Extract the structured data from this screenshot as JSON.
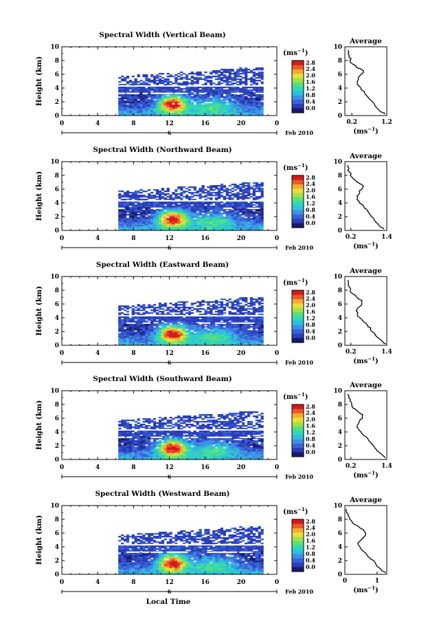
{
  "date_label": "Feb 2010",
  "xlabel": "Local Time",
  "average_title": "Average",
  "cbar_unit": "(ms⁻¹)",
  "avg_xlabel": "(ms⁻¹)",
  "colors": {
    "colormap": [
      "#1a1a6a",
      "#2a3eb8",
      "#3a62d8",
      "#3f8fe8",
      "#2fbfe0",
      "#2fd7b8",
      "#55e07a",
      "#a6e04a",
      "#e8e03a",
      "#f5a832",
      "#ec5a2a",
      "#d41a1a"
    ]
  },
  "chart_data": [
    {
      "type": "heatmap",
      "title": "Spectral Width (Vertical Beam)",
      "ylabel": "Height (km)",
      "x_ticks": [
        "0",
        "4",
        "8",
        "12",
        "16",
        "20",
        "0"
      ],
      "day_tick": "6",
      "y_ticks": [
        "0",
        "2",
        "4",
        "6",
        "8",
        "10"
      ],
      "xlim": [
        0,
        24
      ],
      "ylim": [
        0,
        10
      ],
      "cbar_ticks": [
        "0.0",
        "0.4",
        "0.8",
        "1.2",
        "1.6",
        "2.0",
        "2.4",
        "2.8"
      ],
      "cbar_range": [
        0,
        2.8
      ],
      "data_extent": {
        "time": [
          6.3,
          22.5
        ],
        "height_core": [
          0,
          4.2
        ],
        "height_upper": [
          4.4,
          7.0
        ]
      },
      "average": {
        "x_ticks": [
          "0.2",
          "1.2"
        ],
        "xlim": [
          0,
          1.2
        ],
        "height": [
          0.2,
          0.5,
          1,
          1.5,
          2,
          2.5,
          3,
          3.5,
          4,
          4.5,
          5,
          5.5,
          6,
          6.5,
          7,
          7.5,
          8,
          8.5,
          9,
          9.5
        ],
        "value": [
          1.15,
          1.05,
          0.95,
          0.85,
          0.78,
          0.7,
          0.62,
          0.55,
          0.45,
          0.38,
          0.35,
          0.4,
          0.48,
          0.52,
          0.35,
          0.22,
          0.16,
          0.12,
          0.1,
          0.08
        ]
      }
    },
    {
      "type": "heatmap",
      "title": "Spectral Width (Northward Beam)",
      "ylabel": "Height (km)",
      "x_ticks": [
        "0",
        "4",
        "8",
        "12",
        "16",
        "20",
        "0"
      ],
      "day_tick": "6",
      "y_ticks": [
        "0",
        "2",
        "4",
        "6",
        "8",
        "10"
      ],
      "xlim": [
        0,
        24
      ],
      "ylim": [
        0,
        10
      ],
      "cbar_ticks": [
        "0.0",
        "0.4",
        "0.8",
        "1.2",
        "1.6",
        "2.0",
        "2.4",
        "2.8"
      ],
      "cbar_range": [
        0,
        2.8
      ],
      "data_extent": {
        "time": [
          6.3,
          22.5
        ],
        "height_core": [
          0,
          4.2
        ],
        "height_upper": [
          4.4,
          7.0
        ]
      },
      "average": {
        "x_ticks": [
          "0.2",
          "1.4"
        ],
        "xlim": [
          0,
          1.4
        ],
        "height": [
          0.2,
          0.5,
          1,
          1.5,
          2,
          2.5,
          3,
          3.5,
          4,
          4.5,
          5,
          5.5,
          6,
          6.5,
          7,
          7.5,
          8,
          8.5,
          9,
          9.5
        ],
        "value": [
          1.3,
          1.2,
          1.1,
          1.0,
          0.9,
          0.82,
          0.75,
          0.62,
          0.5,
          0.42,
          0.4,
          0.48,
          0.55,
          0.6,
          0.42,
          0.28,
          0.2,
          0.15,
          0.12,
          0.1
        ]
      }
    },
    {
      "type": "heatmap",
      "title": "Spectral Width (Eastward Beam)",
      "ylabel": "Height (km)",
      "x_ticks": [
        "0",
        "4",
        "8",
        "12",
        "16",
        "20",
        "0"
      ],
      "day_tick": "6",
      "y_ticks": [
        "0",
        "2",
        "4",
        "6",
        "8",
        "10"
      ],
      "xlim": [
        0,
        24
      ],
      "ylim": [
        0,
        10
      ],
      "cbar_ticks": [
        "0.0",
        "0.4",
        "0.8",
        "1.2",
        "1.6",
        "2.0",
        "2.4",
        "2.8"
      ],
      "cbar_range": [
        0,
        2.8
      ],
      "data_extent": {
        "time": [
          6.3,
          22.5
        ],
        "height_core": [
          0,
          4.2
        ],
        "height_upper": [
          4.4,
          7.0
        ]
      },
      "average": {
        "x_ticks": [
          "0.2",
          "1.4"
        ],
        "xlim": [
          0,
          1.4
        ],
        "height": [
          0.2,
          0.5,
          1,
          1.5,
          2,
          2.5,
          3,
          3.5,
          4,
          4.5,
          5,
          5.5,
          6,
          6.5,
          7,
          7.5,
          8,
          8.5,
          9,
          9.5
        ],
        "value": [
          1.35,
          1.25,
          1.12,
          1.0,
          0.92,
          0.85,
          0.75,
          0.62,
          0.5,
          0.42,
          0.38,
          0.45,
          0.55,
          0.58,
          0.4,
          0.25,
          0.18,
          0.14,
          0.11,
          0.1
        ]
      }
    },
    {
      "type": "heatmap",
      "title": "Spectral Width (Southward Beam)",
      "ylabel": "Height (km)",
      "x_ticks": [
        "0",
        "4",
        "8",
        "12",
        "16",
        "20",
        "0"
      ],
      "day_tick": "6",
      "y_ticks": [
        "0",
        "2",
        "4",
        "6",
        "8",
        "10"
      ],
      "xlim": [
        0,
        24
      ],
      "ylim": [
        0,
        10
      ],
      "cbar_ticks": [
        "0.0",
        "0.4",
        "0.8",
        "1.2",
        "1.6",
        "2.0",
        "2.4",
        "2.8"
      ],
      "cbar_range": [
        0,
        2.8
      ],
      "data_extent": {
        "time": [
          6.3,
          22.5
        ],
        "height_core": [
          0,
          4.2
        ],
        "height_upper": [
          4.4,
          7.0
        ]
      },
      "average": {
        "x_ticks": [
          "0.2",
          "1.4"
        ],
        "xlim": [
          0,
          1.4
        ],
        "height": [
          0.2,
          0.5,
          1,
          1.5,
          2,
          2.5,
          3,
          3.5,
          4,
          4.5,
          5,
          5.5,
          6,
          6.5,
          7,
          7.5,
          8,
          8.5,
          9,
          9.5
        ],
        "value": [
          1.35,
          1.28,
          1.15,
          1.05,
          0.95,
          0.85,
          0.75,
          0.65,
          0.55,
          0.45,
          0.42,
          0.48,
          0.58,
          0.6,
          0.42,
          0.28,
          0.22,
          0.16,
          0.12,
          0.1
        ]
      }
    },
    {
      "type": "heatmap",
      "title": "Spectral Width (Westward Beam)",
      "ylabel": "Height (km)",
      "x_ticks": [
        "0",
        "4",
        "8",
        "12",
        "16",
        "20",
        "0"
      ],
      "day_tick": "6",
      "y_ticks": [
        "0",
        "2",
        "4",
        "6",
        "8",
        "10"
      ],
      "xlim": [
        0,
        24
      ],
      "ylim": [
        0,
        10
      ],
      "cbar_ticks": [
        "0.0",
        "0.4",
        "0.8",
        "1.2",
        "1.6",
        "2.0",
        "2.4",
        "2.8"
      ],
      "cbar_range": [
        0,
        2.8
      ],
      "data_extent": {
        "time": [
          6.3,
          22.5
        ],
        "height_core": [
          0,
          4.2
        ],
        "height_upper": [
          4.4,
          7.0
        ]
      },
      "average": {
        "x_ticks": [
          "0",
          "1"
        ],
        "xlim": [
          0,
          1.3
        ],
        "height": [
          0.2,
          0.5,
          1,
          1.5,
          2,
          2.5,
          3,
          3.5,
          4,
          4.5,
          5,
          5.5,
          6,
          6.5,
          7,
          7.5,
          8,
          8.5,
          9,
          9.5
        ],
        "value": [
          1.25,
          1.15,
          1.05,
          0.95,
          0.88,
          0.75,
          0.65,
          0.55,
          0.45,
          0.4,
          0.5,
          0.6,
          0.65,
          0.55,
          0.4,
          0.25,
          0.15,
          0.1,
          0.07,
          0.05
        ]
      }
    }
  ]
}
